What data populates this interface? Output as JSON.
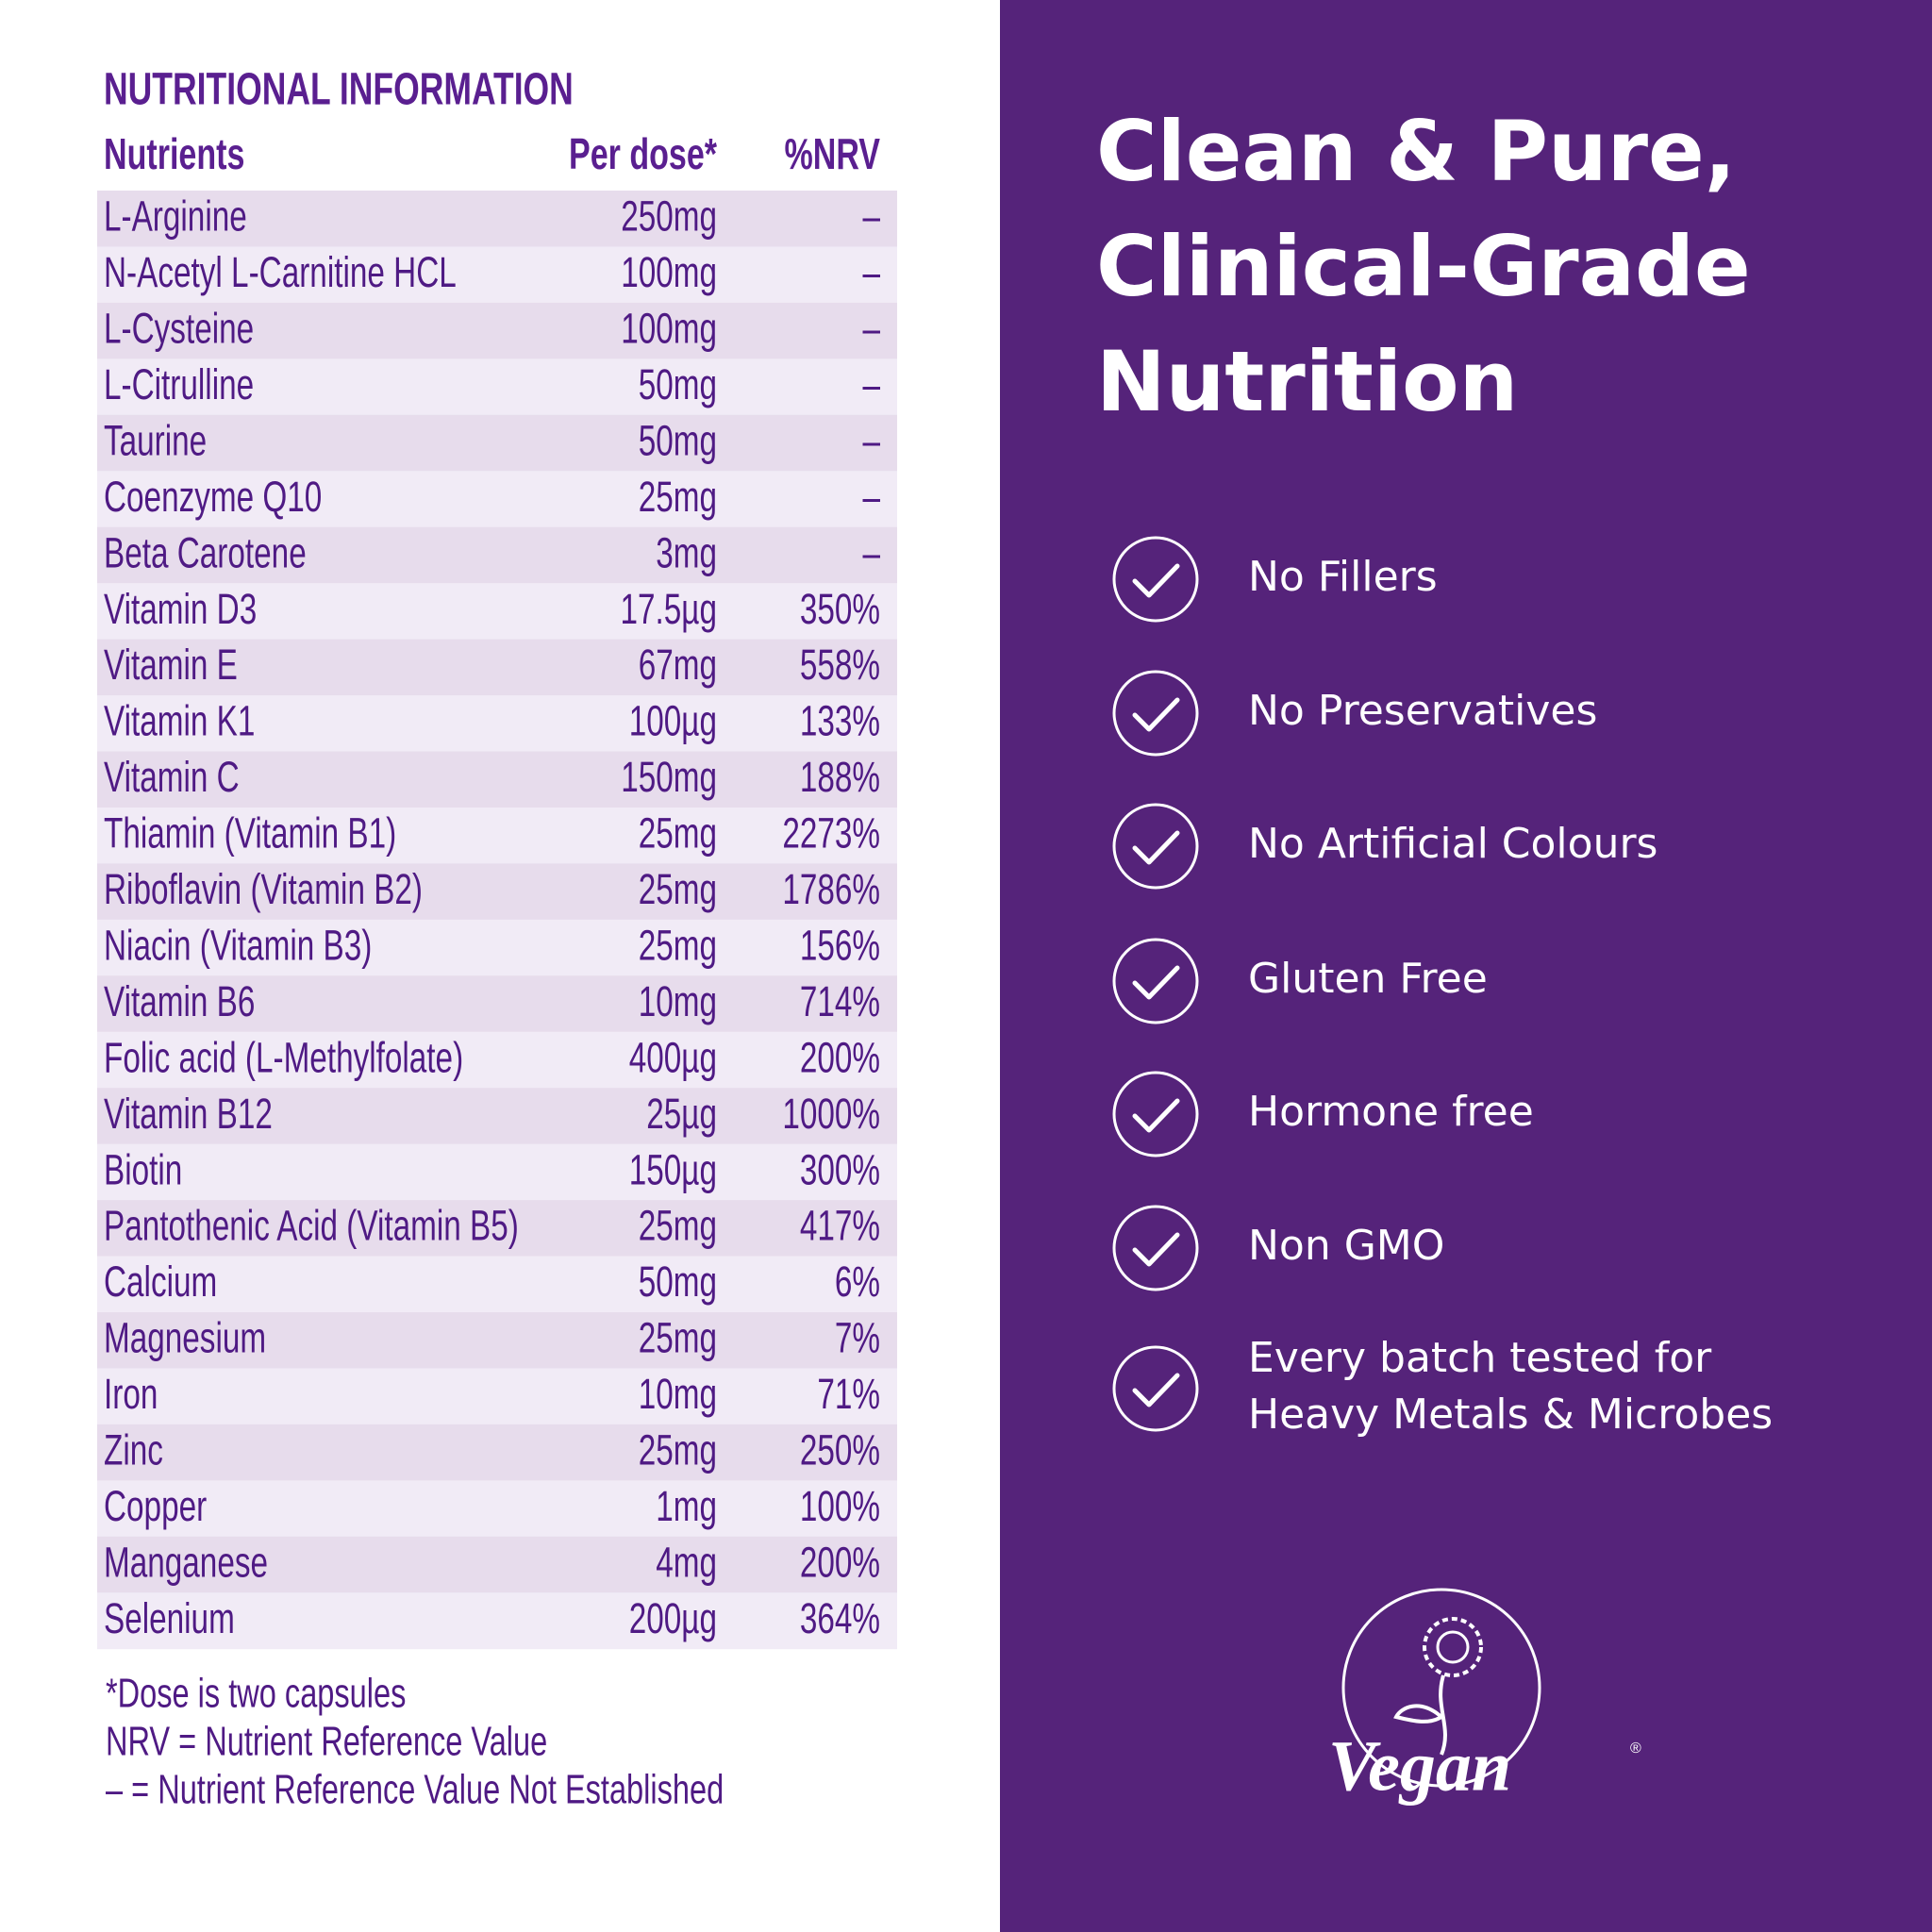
{
  "nutrition": {
    "title": "NUTRITIONAL INFORMATION",
    "headers": [
      "Nutrients",
      "Per dose*",
      "%NRV"
    ],
    "rows": [
      [
        "L-Arginine",
        "250mg",
        "–"
      ],
      [
        "N-Acetyl L-Carnitine HCL",
        "100mg",
        "–"
      ],
      [
        "L-Cysteine",
        "100mg",
        "–"
      ],
      [
        "L-Citrulline",
        "50mg",
        "–"
      ],
      [
        "Taurine",
        "50mg",
        "–"
      ],
      [
        "Coenzyme Q10",
        "25mg",
        "–"
      ],
      [
        "Beta Carotene",
        "3mg",
        "–"
      ],
      [
        "Vitamin D3",
        "17.5µg",
        "350%"
      ],
      [
        "Vitamin E",
        "67mg",
        "558%"
      ],
      [
        "Vitamin K1",
        "100µg",
        "133%"
      ],
      [
        "Vitamin C",
        "150mg",
        "188%"
      ],
      [
        "Thiamin (Vitamin B1)",
        "25mg",
        "2273%"
      ],
      [
        "Riboflavin (Vitamin B2)",
        "25mg",
        "1786%"
      ],
      [
        "Niacin (Vitamin B3)",
        "25mg",
        "156%"
      ],
      [
        "Vitamin B6",
        "10mg",
        "714%"
      ],
      [
        "Folic acid (L-Methylfolate)",
        "400µg",
        "200%"
      ],
      [
        "Vitamin B12",
        "25µg",
        "1000%"
      ],
      [
        "Biotin",
        "150µg",
        "300%"
      ],
      [
        "Pantothenic Acid (Vitamin B5)",
        "25mg",
        "417%"
      ],
      [
        "Calcium",
        "50mg",
        "6%"
      ],
      [
        "Magnesium",
        "25mg",
        "7%"
      ],
      [
        "Iron",
        "10mg",
        "71%"
      ],
      [
        "Zinc",
        "25mg",
        "250%"
      ],
      [
        "Copper",
        "1mg",
        "100%"
      ],
      [
        "Manganese",
        "4mg",
        "200%"
      ],
      [
        "Selenium",
        "200µg",
        "364%"
      ]
    ],
    "footnotes": [
      "*Dose is two capsules",
      "NRV = Nutrient Reference Value",
      "– = Nutrient Reference Value Not Established"
    ]
  },
  "panel": {
    "headline": [
      "Clean & Pure,",
      "Clinical-Grade",
      "Nutrition"
    ],
    "features": [
      [
        "No Fillers"
      ],
      [
        "No Preservatives"
      ],
      [
        "No Artificial Colours"
      ],
      [
        "Gluten Free"
      ],
      [
        "Hormone free"
      ],
      [
        "Non GMO"
      ],
      [
        "Every batch tested for",
        "Heavy Metals & Microbes"
      ]
    ],
    "logo": {
      "text": "Vegan",
      "mark": "®"
    }
  }
}
